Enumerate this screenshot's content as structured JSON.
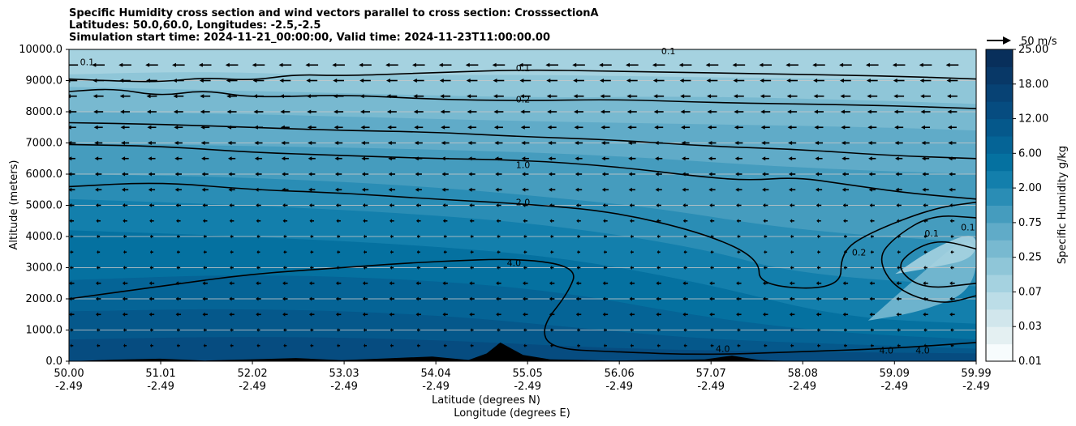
{
  "chart_data": {
    "type": "contour",
    "title": [
      "Specific Humidity cross section and wind vectors parallel to cross section: CrosssectionA",
      "Latitudes: 50.0,60.0, Longitudes: -2.5,-2.5",
      "Simulation start time: 2024-11-21_00:00:00, Valid time: 2024-11-23T11:00:00.00"
    ],
    "ylabel": "Altitude (meters)",
    "xlabel_lat": "Latitude (degrees N)",
    "xlabel_lon": "Longitude (degrees E)",
    "ylim": [
      0,
      10000
    ],
    "yticks": [
      "0.0",
      "1000.0",
      "2000.0",
      "3000.0",
      "4000.0",
      "5000.0",
      "6000.0",
      "7000.0",
      "8000.0",
      "9000.0",
      "10000.0"
    ],
    "xlim": [
      50.0,
      59.99
    ],
    "xticks": [
      {
        "lat": 50.0,
        "lat_label": "50.00",
        "lon_label": "-2.49"
      },
      {
        "lat": 51.01,
        "lat_label": "51.01",
        "lon_label": "-2.49"
      },
      {
        "lat": 52.02,
        "lat_label": "52.02",
        "lon_label": "-2.49"
      },
      {
        "lat": 53.03,
        "lat_label": "53.03",
        "lon_label": "-2.49"
      },
      {
        "lat": 54.04,
        "lat_label": "54.04",
        "lon_label": "-2.49"
      },
      {
        "lat": 55.05,
        "lat_label": "55.05",
        "lon_label": "-2.49"
      },
      {
        "lat": 56.06,
        "lat_label": "56.06",
        "lon_label": "-2.49"
      },
      {
        "lat": 57.07,
        "lat_label": "57.07",
        "lon_label": "-2.49"
      },
      {
        "lat": 58.08,
        "lat_label": "58.08",
        "lon_label": "-2.49"
      },
      {
        "lat": 59.09,
        "lat_label": "59.09",
        "lon_label": "-2.49"
      },
      {
        "lat": 59.99,
        "lat_label": "59.99",
        "lon_label": "-2.49"
      }
    ],
    "colorbar": {
      "label": "Specific Humidity g/kg",
      "levels": [
        0.01,
        0.02,
        0.03,
        0.05,
        0.07,
        0.1,
        0.25,
        0.5,
        0.75,
        1.0,
        2.0,
        4.0,
        6.0,
        8.0,
        12.0,
        15.0,
        18.0,
        22.0,
        25.0
      ],
      "tick_labels": [
        "0.01",
        "0.03",
        "0.07",
        "0.25",
        "0.75",
        "2.00",
        "6.00",
        "12.00",
        "18.00",
        "25.00"
      ],
      "colors": [
        "#f7fcfd",
        "#e4f0f2",
        "#d1e6ec",
        "#bcdde7",
        "#a5d2e0",
        "#8fc6d8",
        "#78b9d0",
        "#60abc8",
        "#459cbe",
        "#2a8db5",
        "#137fac",
        "#0571a0",
        "#056496",
        "#05588b",
        "#064c80",
        "#074274",
        "#083867",
        "#082f5b"
      ]
    },
    "contour_labels": [
      {
        "text": "0.1",
        "lat": 55.0,
        "alt": 9400
      },
      {
        "text": "0.2",
        "lat": 55.0,
        "alt": 8400
      },
      {
        "text": "1.0",
        "lat": 55.0,
        "alt": 6300
      },
      {
        "text": "2.0",
        "lat": 55.0,
        "alt": 5100
      },
      {
        "text": "4.0",
        "lat": 54.9,
        "alt": 3150
      },
      {
        "text": "0.1",
        "lat": 56.6,
        "alt": 9950
      },
      {
        "text": "0.1",
        "lat": 59.5,
        "alt": 4100
      },
      {
        "text": "0.2",
        "lat": 58.7,
        "alt": 3500
      },
      {
        "text": "0.1",
        "lat": 59.9,
        "alt": 4300
      },
      {
        "text": "4.0",
        "lat": 57.2,
        "alt": 400
      },
      {
        "text": "4.0",
        "lat": 59.0,
        "alt": 350
      },
      {
        "text": "4.0",
        "lat": 59.4,
        "alt": 350
      },
      {
        "text": "0.1",
        "lat": 50.2,
        "alt": 9600
      }
    ],
    "humidity_layers": [
      {
        "color": "#8fc6d8",
        "pts": [
          [
            50,
            9200
          ],
          [
            51.5,
            9300
          ],
          [
            53,
            9150
          ],
          [
            55,
            9200
          ],
          [
            57,
            9100
          ],
          [
            59,
            9050
          ],
          [
            59.99,
            9000
          ]
        ]
      },
      {
        "color": "#78b9d0",
        "pts": [
          [
            50,
            8800
          ],
          [
            51.5,
            8700
          ],
          [
            53,
            8600
          ],
          [
            55,
            8450
          ],
          [
            57,
            8500
          ],
          [
            59,
            8350
          ],
          [
            59.99,
            8250
          ]
        ]
      },
      {
        "color": "#60abc8",
        "pts": [
          [
            50,
            8000
          ],
          [
            51.5,
            7950
          ],
          [
            53,
            7850
          ],
          [
            55,
            7700
          ],
          [
            57,
            7600
          ],
          [
            59,
            7500
          ],
          [
            59.99,
            7400
          ]
        ]
      },
      {
        "color": "#459cbe",
        "pts": [
          [
            50,
            7000
          ],
          [
            52,
            6900
          ],
          [
            54,
            6800
          ],
          [
            56,
            6600
          ],
          [
            58,
            6200
          ],
          [
            59.99,
            6000
          ]
        ]
      },
      {
        "color": "#2a8db5",
        "pts": [
          [
            50,
            6000
          ],
          [
            52,
            5900
          ],
          [
            54,
            5600
          ],
          [
            55.5,
            5200
          ],
          [
            56.5,
            4900
          ],
          [
            58,
            4200
          ],
          [
            59.99,
            3800
          ]
        ]
      },
      {
        "color": "#137fac",
        "pts": [
          [
            50,
            5200
          ],
          [
            52,
            5000
          ],
          [
            54,
            4700
          ],
          [
            55.5,
            4300
          ],
          [
            57,
            3600
          ],
          [
            58,
            2800
          ],
          [
            59.99,
            2400
          ]
        ]
      },
      {
        "color": "#0571a0",
        "pts": [
          [
            50,
            4200
          ],
          [
            52,
            4000
          ],
          [
            54,
            3700
          ],
          [
            55.5,
            3300
          ],
          [
            57,
            2500
          ],
          [
            58.5,
            1400
          ],
          [
            59.99,
            1200
          ]
        ]
      },
      {
        "color": "#056496",
        "pts": [
          [
            50,
            2600
          ],
          [
            52,
            2800
          ],
          [
            54,
            2600
          ],
          [
            55.5,
            2200
          ],
          [
            57,
            1400
          ],
          [
            58.5,
            900
          ],
          [
            59.99,
            700
          ]
        ]
      },
      {
        "color": "#05588b",
        "pts": [
          [
            50,
            1600
          ],
          [
            52,
            1700
          ],
          [
            54,
            1500
          ],
          [
            55.5,
            1100
          ],
          [
            57,
            700
          ],
          [
            59,
            500
          ],
          [
            59.99,
            400
          ]
        ]
      },
      {
        "color": "#064c80",
        "pts": [
          [
            50,
            700
          ],
          [
            52,
            800
          ],
          [
            54,
            700
          ],
          [
            56,
            400
          ],
          [
            58,
            300
          ],
          [
            59.99,
            250
          ]
        ]
      }
    ],
    "dry_pockets": [
      {
        "color": "#78b9d0",
        "pts": [
          [
            58.8,
            1300
          ],
          [
            59.3,
            2600
          ],
          [
            59.99,
            4300
          ],
          [
            59.99,
            2300
          ],
          [
            59.4,
            1600
          ]
        ]
      },
      {
        "color": "#a5d2e0",
        "pts": [
          [
            59.1,
            2800
          ],
          [
            59.5,
            3600
          ],
          [
            59.99,
            4200
          ],
          [
            59.99,
            3300
          ],
          [
            59.5,
            3000
          ]
        ]
      }
    ],
    "contour_lines": [
      [
        [
          50,
          9050
        ],
        [
          50.4,
          9000
        ],
        [
          51,
          8950
        ],
        [
          51.5,
          9100
        ],
        [
          52,
          9000
        ],
        [
          52.5,
          9200
        ],
        [
          53,
          9150
        ],
        [
          54,
          9250
        ],
        [
          55,
          9350
        ],
        [
          56,
          9300
        ],
        [
          57,
          9250
        ],
        [
          58,
          9200
        ],
        [
          59,
          9150
        ],
        [
          59.99,
          9050
        ]
      ],
      [
        [
          50,
          8650
        ],
        [
          50.5,
          8750
        ],
        [
          51,
          8500
        ],
        [
          51.5,
          8700
        ],
        [
          52,
          8450
        ],
        [
          53,
          8550
        ],
        [
          54,
          8400
        ],
        [
          55,
          8350
        ],
        [
          56,
          8400
        ],
        [
          57,
          8300
        ],
        [
          58,
          8250
        ],
        [
          59,
          8200
        ],
        [
          59.99,
          8100
        ]
      ],
      [
        [
          50,
          7650
        ],
        [
          51,
          7600
        ],
        [
          52,
          7500
        ],
        [
          53,
          7400
        ],
        [
          54,
          7350
        ],
        [
          55,
          7200
        ],
        [
          56,
          7100
        ],
        [
          57,
          6900
        ],
        [
          58,
          6800
        ],
        [
          59,
          6600
        ],
        [
          59.99,
          6500
        ]
      ],
      [
        [
          50,
          6950
        ],
        [
          51,
          6900
        ],
        [
          52,
          6700
        ],
        [
          53,
          6600
        ],
        [
          54,
          6500
        ],
        [
          55,
          6450
        ],
        [
          56,
          6250
        ],
        [
          57,
          5900
        ],
        [
          57.5,
          5800
        ],
        [
          58,
          5900
        ],
        [
          58.5,
          5700
        ],
        [
          59.2,
          5400
        ],
        [
          59.99,
          5200
        ]
      ],
      [
        [
          50,
          5600
        ],
        [
          51,
          5750
        ],
        [
          52,
          5500
        ],
        [
          53,
          5400
        ],
        [
          54,
          5200
        ],
        [
          55,
          5050
        ],
        [
          56,
          4800
        ],
        [
          57,
          4100
        ],
        [
          57.6,
          3300
        ],
        [
          57.6,
          2400
        ],
        [
          58.5,
          2300
        ],
        [
          58.5,
          3500
        ],
        [
          58.8,
          4100
        ],
        [
          59.5,
          4900
        ],
        [
          59.99,
          5100
        ]
      ],
      [
        [
          50,
          2000
        ],
        [
          51,
          2400
        ],
        [
          52,
          2800
        ],
        [
          53,
          3000
        ],
        [
          54,
          3200
        ],
        [
          55,
          3300
        ],
        [
          55.6,
          3000
        ],
        [
          55.5,
          2200
        ],
        [
          55.2,
          1100
        ],
        [
          55.3,
          400
        ],
        [
          56,
          300
        ],
        [
          57,
          200
        ],
        [
          58,
          300
        ],
        [
          59,
          400
        ],
        [
          59.99,
          600
        ]
      ],
      [
        [
          59.99,
          4600
        ],
        [
          59.5,
          4700
        ],
        [
          59.1,
          4000
        ],
        [
          58.9,
          3300
        ],
        [
          59.1,
          2300
        ],
        [
          59.6,
          1800
        ],
        [
          59.99,
          2100
        ]
      ],
      [
        [
          59.99,
          3600
        ],
        [
          59.6,
          3900
        ],
        [
          59.3,
          3600
        ],
        [
          59.1,
          3000
        ],
        [
          59.4,
          2300
        ],
        [
          59.99,
          2500
        ]
      ]
    ],
    "terrain": [
      [
        50,
        0
      ],
      [
        50.5,
        50
      ],
      [
        51,
        80
      ],
      [
        51.5,
        20
      ],
      [
        52,
        60
      ],
      [
        52.5,
        100
      ],
      [
        53,
        30
      ],
      [
        53.5,
        90
      ],
      [
        54,
        150
      ],
      [
        54.4,
        40
      ],
      [
        54.6,
        250
      ],
      [
        54.75,
        600
      ],
      [
        55,
        200
      ],
      [
        55.3,
        60
      ],
      [
        56,
        20
      ],
      [
        57,
        60
      ],
      [
        57.3,
        180
      ],
      [
        57.6,
        40
      ],
      [
        58,
        0
      ],
      [
        59.99,
        0
      ]
    ],
    "wind": {
      "legend_label": "50 m/s",
      "levels_m": [
        500,
        1000,
        1500,
        2000,
        2500,
        3000,
        3500,
        4000,
        4500,
        5000,
        5500,
        6000,
        6500,
        7000,
        7500,
        8000,
        8500,
        9000,
        9500
      ],
      "speed_ms_by_level": [
        -6,
        -6,
        -14,
        -14,
        -14,
        -10,
        -8,
        -8,
        -12,
        -14,
        -18,
        -18,
        -20,
        -22,
        -24,
        -26,
        -28,
        -30,
        -34
      ]
    }
  }
}
